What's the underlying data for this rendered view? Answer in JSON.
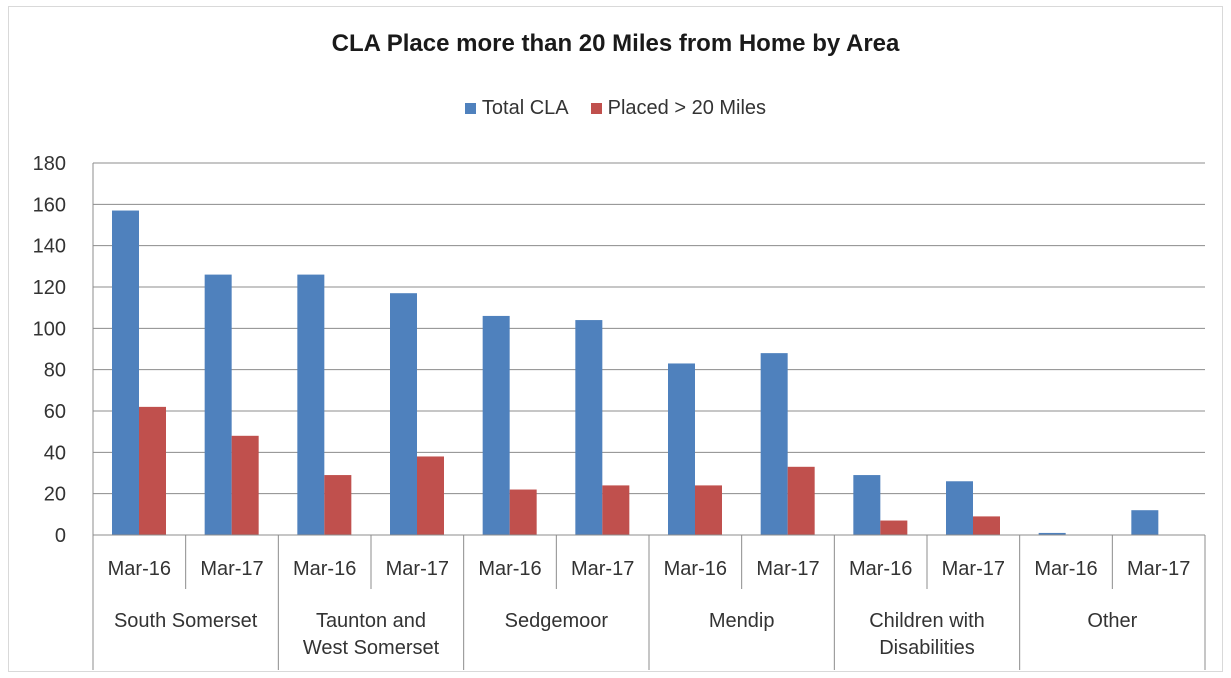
{
  "chart_data": {
    "type": "bar",
    "title": "CLA Place more than 20 Miles from Home by Area",
    "ylim": [
      0,
      180
    ],
    "yticks": [
      0,
      20,
      40,
      60,
      80,
      100,
      120,
      140,
      160,
      180
    ],
    "grid": true,
    "legend_position": "top",
    "colors": {
      "Total CLA": "#4f81bd",
      "Placed > 20 Miles": "#c0504d"
    },
    "groups": [
      {
        "label": [
          "South Somerset"
        ],
        "periods": [
          "Mar-16",
          "Mar-17"
        ]
      },
      {
        "label": [
          "Taunton and",
          "West Somerset"
        ],
        "periods": [
          "Mar-16",
          "Mar-17"
        ]
      },
      {
        "label": [
          "Sedgemoor"
        ],
        "periods": [
          "Mar-16",
          "Mar-17"
        ]
      },
      {
        "label": [
          "Mendip"
        ],
        "periods": [
          "Mar-16",
          "Mar-17"
        ]
      },
      {
        "label": [
          "Children with",
          "Disabilities"
        ],
        "periods": [
          "Mar-16",
          "Mar-17"
        ]
      },
      {
        "label": [
          "Other"
        ],
        "periods": [
          "Mar-16",
          "Mar-17"
        ]
      }
    ],
    "series": [
      {
        "name": "Total CLA",
        "values": [
          157,
          126,
          126,
          117,
          106,
          104,
          83,
          88,
          29,
          26,
          1,
          12
        ]
      },
      {
        "name": "Placed > 20 Miles",
        "values": [
          62,
          48,
          29,
          38,
          22,
          24,
          24,
          33,
          7,
          9,
          0,
          0
        ]
      }
    ]
  }
}
